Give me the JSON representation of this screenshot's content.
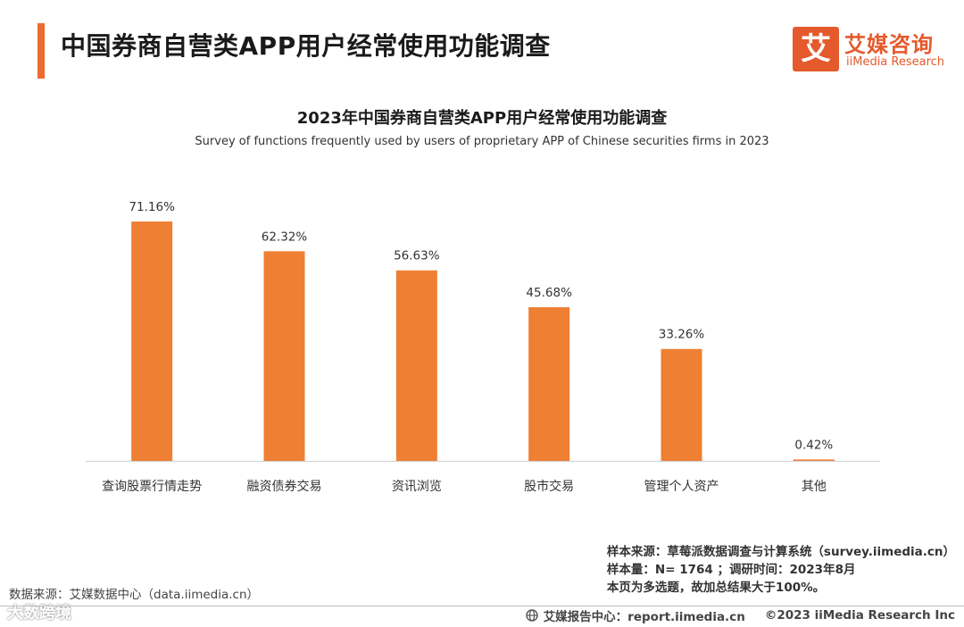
{
  "header": {
    "page_title": "中国券商自营类APP用户经常使用功能调查",
    "logo_mark": "艾",
    "logo_cn": "艾媒咨询",
    "logo_en": "iiMedia Research"
  },
  "chart_data": {
    "type": "bar",
    "title": "2023年中国券商自营类APP用户经常使用功能调查",
    "subtitle": "Survey of functions frequently used by users of proprietary APP of Chinese securities firms in 2023",
    "categories": [
      "查询股票行情走势",
      "融资债券交易",
      "资讯浏览",
      "股市交易",
      "管理个人资产",
      "其他"
    ],
    "values": [
      71.16,
      62.32,
      56.63,
      45.68,
      33.26,
      0.42
    ],
    "value_labels": [
      "71.16%",
      "62.32%",
      "56.63%",
      "45.68%",
      "33.26%",
      "0.42%"
    ],
    "unit": "%",
    "bar_color": "#ee7f33",
    "grid": false,
    "legend": "none"
  },
  "sources": {
    "sample_source": "样本来源：草莓派数据调查与计算系统（survey.iimedia.cn）",
    "sample_size": "样本量：N= 1764 ；调研时间：2023年8月",
    "note": "本页为多选题，故加总结果大于100%。",
    "data_source": "数据来源：艾媒数据中心（data.iimedia.cn）"
  },
  "footer": {
    "report_center": "艾媒报告中心：report.iimedia.cn",
    "copyright": "©2023  iiMedia Research  Inc"
  },
  "watermark": "大数跨境"
}
